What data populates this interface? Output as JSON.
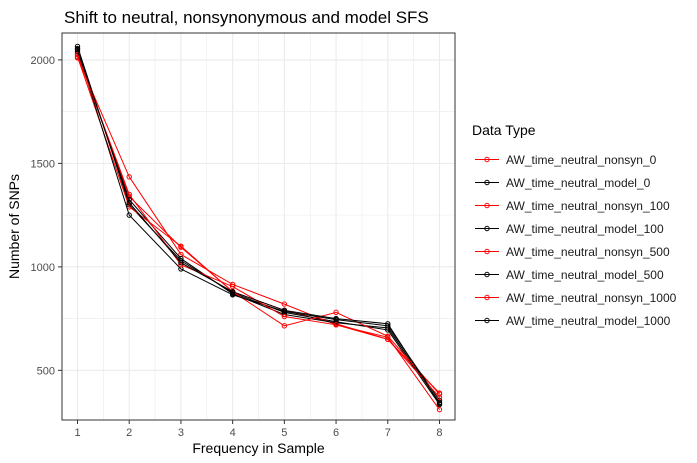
{
  "chart_data": {
    "type": "line",
    "title": "Shift to neutral, nonsynonymous and model SFS",
    "xlabel": "Frequency in Sample",
    "ylabel": "Number of SNPs",
    "x": [
      1,
      2,
      3,
      4,
      5,
      6,
      7,
      8
    ],
    "xlim": [
      0.7,
      8.3
    ],
    "ylim": [
      260,
      2130
    ],
    "x_ticks": [
      "1",
      "2",
      "3",
      "4",
      "5",
      "6",
      "7",
      "8"
    ],
    "y_ticks": [
      {
        "value": 500,
        "label": "500"
      },
      {
        "value": 1000,
        "label": "1000"
      },
      {
        "value": 1500,
        "label": "1500"
      },
      {
        "value": 2000,
        "label": "2000"
      }
    ],
    "grid": true,
    "legend_position": "right",
    "legend_title": "Data Type",
    "colors": {
      "nonsyn": "#ff0000",
      "model": "#000000",
      "grid": "#ebebeb",
      "panel_border": "#333333",
      "axis_text": "#4d4d4d"
    },
    "series": [
      {
        "name": "AW_time_neutral_nonsyn_0",
        "color": "#ff0000",
        "values": [
          2030,
          1340,
          1095,
          880,
          790,
          725,
          650,
          390
        ]
      },
      {
        "name": "AW_time_neutral_model_0",
        "color": "#000000",
        "values": [
          2065,
          1300,
          1030,
          875,
          780,
          735,
          695,
          335
        ]
      },
      {
        "name": "AW_time_neutral_nonsyn_100",
        "color": "#ff0000",
        "values": [
          2010,
          1435,
          1060,
          915,
          820,
          720,
          660,
          310
        ]
      },
      {
        "name": "AW_time_neutral_model_100",
        "color": "#000000",
        "values": [
          2040,
          1325,
          1040,
          870,
          770,
          730,
          705,
          345
        ]
      },
      {
        "name": "AW_time_neutral_nonsyn_500",
        "color": "#ff0000",
        "values": [
          2015,
          1290,
          1100,
          880,
          715,
          780,
          665,
          385
        ]
      },
      {
        "name": "AW_time_neutral_model_500",
        "color": "#000000",
        "values": [
          2050,
          1250,
          990,
          865,
          785,
          745,
          715,
          355
        ]
      },
      {
        "name": "AW_time_neutral_nonsyn_1000",
        "color": "#ff0000",
        "values": [
          2025,
          1350,
          1010,
          905,
          760,
          720,
          650,
          370
        ]
      },
      {
        "name": "AW_time_neutral_model_1000",
        "color": "#000000",
        "values": [
          2055,
          1310,
          1020,
          880,
          790,
          750,
          725,
          340
        ]
      }
    ]
  }
}
